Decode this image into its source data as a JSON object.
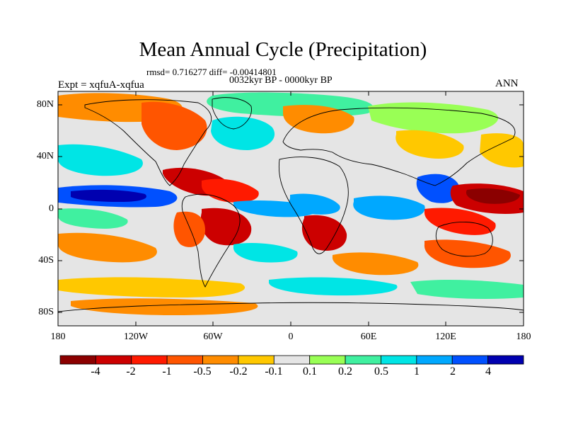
{
  "title": "Mean Annual Cycle (Precipitation)",
  "stats_line": "rmsd= 0.716277 diff= -0.00414801",
  "period": "0032kyr BP - 0000kyr BP",
  "experiment": "Expt = xqfuA-xqfua",
  "season": "ANN",
  "lat_labels": [
    "80N",
    "40N",
    "0",
    "40S",
    "80S"
  ],
  "lon_labels": [
    "180",
    "120W",
    "60W",
    "0",
    "60E",
    "120E",
    "180"
  ],
  "colorbar": {
    "colors": [
      "#8b0000",
      "#cc0000",
      "#ff1a00",
      "#ff5500",
      "#ff8c00",
      "#ffc800",
      "#e5e5e5",
      "#99ff55",
      "#40f0a0",
      "#00e5e5",
      "#00a8ff",
      "#0050ff",
      "#0000b0"
    ],
    "labels": [
      "-4",
      "-2",
      "-1",
      "-0.5",
      "-0.2",
      "-0.1",
      "0.1",
      "0.2",
      "0.5",
      "1",
      "2",
      "4"
    ]
  },
  "colors": {
    "neutral": "#e5e5e5",
    "coast": "#000000"
  }
}
